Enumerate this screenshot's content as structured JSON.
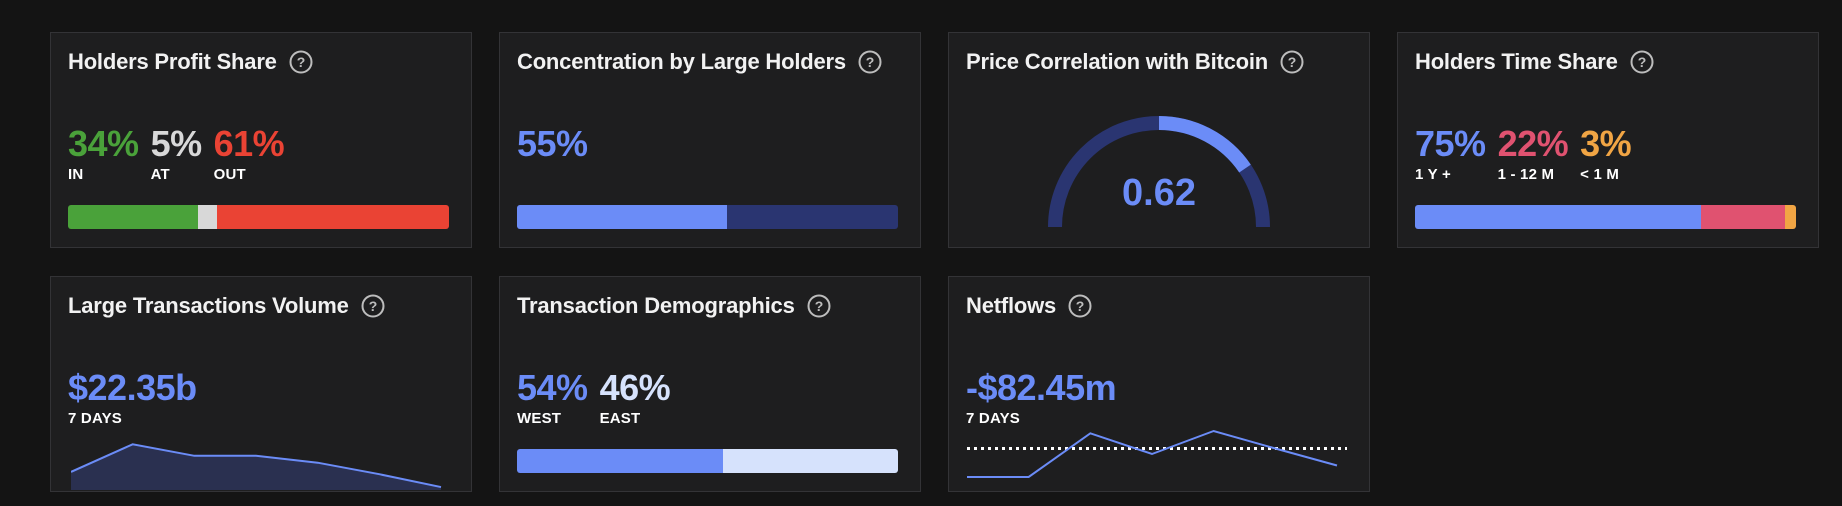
{
  "colors": {
    "green": "#4aa23a",
    "gray": "#d8d8d8",
    "red": "#ea4334",
    "blue": "#6b8cf7",
    "navy": "#2a3571",
    "pink": "#e05270",
    "orange": "#f1a544",
    "light_blue": "#d6e2fc"
  },
  "holders_profit": {
    "title": "Holders Profit Share",
    "in_value": "34%",
    "in_label": "IN",
    "at_value": "5%",
    "at_label": "AT",
    "out_value": "61%",
    "out_label": "OUT",
    "bar": [
      0.34,
      0.05,
      0.61
    ]
  },
  "concentration": {
    "title": "Concentration by Large Holders",
    "value": "55%",
    "fraction": 0.55
  },
  "price_correlation": {
    "title": "Price Correlation with Bitcoin",
    "value": "0.62",
    "fraction": 0.31
  },
  "holders_time": {
    "title": "Holders Time Share",
    "a_value": "75%",
    "a_label": "1 Y +",
    "b_value": "22%",
    "b_label": "1 - 12 M",
    "c_value": "3%",
    "c_label": "< 1 M",
    "bar": [
      0.75,
      0.22,
      0.03
    ]
  },
  "large_tx": {
    "title": "Large Transactions Volume",
    "value": "$22.35b",
    "period": "7 DAYS",
    "sparkline": [
      0.35,
      0.95,
      0.7,
      0.7,
      0.55,
      0.3,
      0.02
    ]
  },
  "demographics": {
    "title": "Transaction Demographics",
    "west_value": "54%",
    "west_label": "WEST",
    "east_value": "46%",
    "east_label": "EAST",
    "bar": [
      0.54,
      0.46
    ]
  },
  "netflows": {
    "title": "Netflows",
    "value": "-$82.45m",
    "period": "7 DAYS",
    "sparkline": [
      0.0,
      0.0,
      0.95,
      0.5,
      1.0,
      0.62,
      0.25
    ],
    "zero_level": 0.62
  }
}
